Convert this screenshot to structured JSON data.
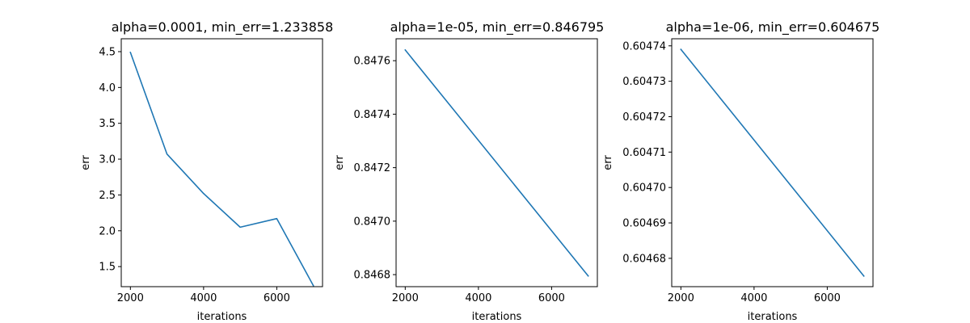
{
  "chart_data": [
    {
      "type": "line",
      "title": "alpha=0.0001, min_err=1.233858",
      "xlabel": "iterations",
      "ylabel": "err",
      "x": [
        2000,
        3000,
        4000,
        5000,
        6000,
        7000
      ],
      "series": [
        {
          "values": [
            4.49,
            3.07,
            2.52,
            2.05,
            2.17,
            1.234
          ]
        }
      ],
      "xlim": [
        1750,
        7250
      ],
      "ylim": [
        1.22,
        4.68
      ],
      "xticks": [
        2000,
        4000,
        6000
      ],
      "xtick_labels": [
        "2000",
        "4000",
        "6000"
      ],
      "yticks": [
        1.5,
        2.0,
        2.5,
        3.0,
        3.5,
        4.0,
        4.5
      ],
      "ytick_labels": [
        "1.5",
        "2.0",
        "2.5",
        "3.0",
        "3.5",
        "4.0",
        "4.5"
      ],
      "color": "#1f77b4",
      "grid": false,
      "legend": "none"
    },
    {
      "type": "line",
      "title": "alpha=1e-05, min_err=0.846795",
      "xlabel": "iterations",
      "ylabel": "err",
      "x": [
        2000,
        7000
      ],
      "series": [
        {
          "values": [
            0.84764,
            0.846795
          ]
        }
      ],
      "xlim": [
        1750,
        7250
      ],
      "ylim": [
        0.846755,
        0.847682
      ],
      "xticks": [
        2000,
        4000,
        6000
      ],
      "xtick_labels": [
        "2000",
        "4000",
        "6000"
      ],
      "yticks": [
        0.8468,
        0.847,
        0.8472,
        0.8474,
        0.8476
      ],
      "ytick_labels": [
        "0.8468",
        "0.8470",
        "0.8472",
        "0.8474",
        "0.8476"
      ],
      "color": "#1f77b4",
      "grid": false,
      "legend": "none"
    },
    {
      "type": "line",
      "title": "alpha=1e-06, min_err=0.604675",
      "xlabel": "iterations",
      "ylabel": "err",
      "x": [
        2000,
        7000
      ],
      "series": [
        {
          "values": [
            0.604739,
            0.604675
          ]
        }
      ],
      "xlim": [
        1750,
        7250
      ],
      "ylim": [
        0.604672,
        0.604742
      ],
      "xticks": [
        2000,
        4000,
        6000
      ],
      "xtick_labels": [
        "2000",
        "4000",
        "6000"
      ],
      "yticks": [
        0.60468,
        0.60469,
        0.6047,
        0.60471,
        0.60472,
        0.60473,
        0.60474
      ],
      "ytick_labels": [
        "0.60468",
        "0.60469",
        "0.60470",
        "0.60471",
        "0.60472",
        "0.60473",
        "0.60474"
      ],
      "color": "#1f77b4",
      "grid": false,
      "legend": "none"
    }
  ]
}
